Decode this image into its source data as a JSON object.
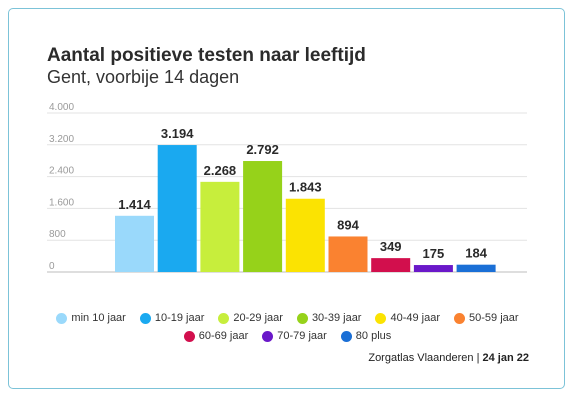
{
  "header": {
    "title": "Aantal positieve testen naar leeftijd",
    "subtitle": "Gent, voorbije 14 dagen"
  },
  "chart_data": {
    "type": "bar",
    "categories": [
      "min 10 jaar",
      "10-19 jaar",
      "20-29 jaar",
      "30-39 jaar",
      "40-49 jaar",
      "50-59 jaar",
      "60-69 jaar",
      "70-79 jaar",
      "80 plus"
    ],
    "values": [
      1414,
      3194,
      2268,
      2792,
      1843,
      894,
      349,
      175,
      184
    ],
    "value_labels": [
      "1.414",
      "3.194",
      "2.268",
      "2.792",
      "1.843",
      "894",
      "349",
      "175",
      "184"
    ],
    "colors": [
      "#9ad9fb",
      "#1aa9f0",
      "#c7ee3c",
      "#96d21a",
      "#fbe302",
      "#fa8230",
      "#d20f4d",
      "#6a18c9",
      "#1a6fd6"
    ],
    "yticks": [
      0,
      800,
      1600,
      2400,
      3200,
      4000
    ],
    "ytick_labels": [
      "0",
      "800",
      "1.600",
      "2.400",
      "3.200",
      "4.000"
    ],
    "ylim": [
      0,
      4000
    ],
    "grid": true,
    "legend": "bottom"
  },
  "source": {
    "name": "Zorgatlas Vlaanderen",
    "separator": " | ",
    "date": "24 jan 22"
  }
}
